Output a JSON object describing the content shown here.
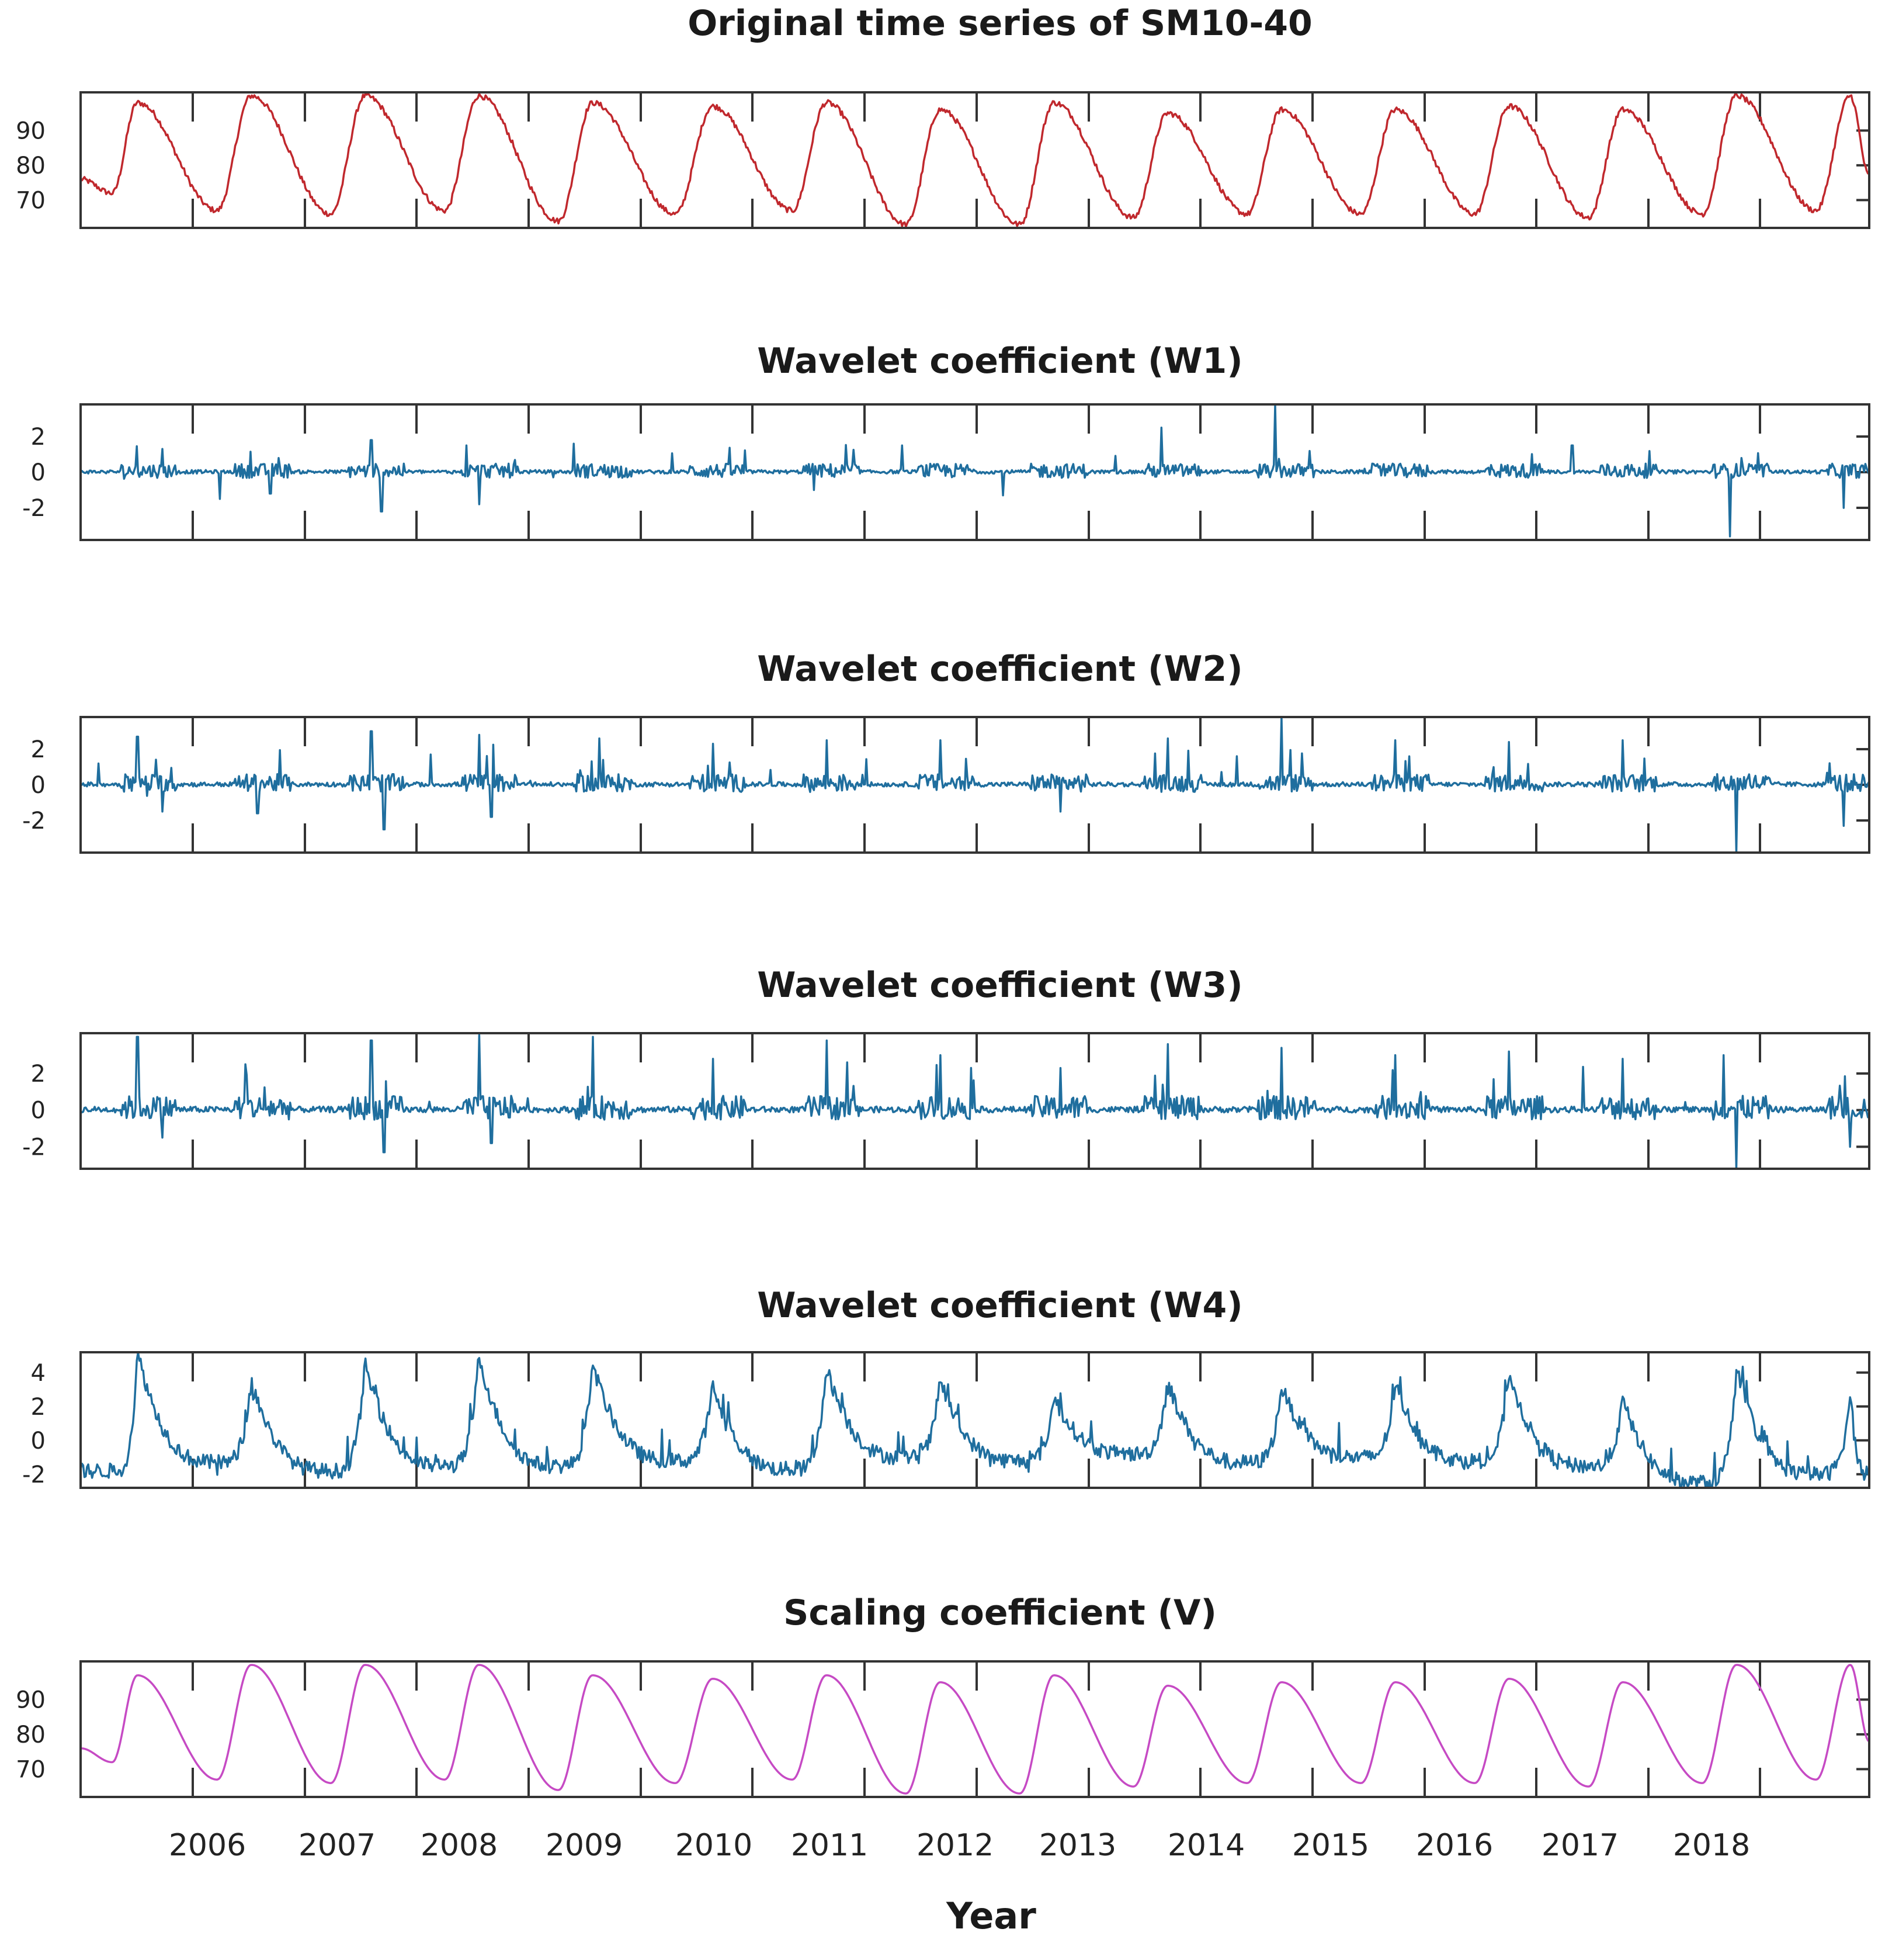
{
  "chart_data": [
    {
      "type": "line",
      "title": "Original time series of SM10-40",
      "color": "#c0282d",
      "yticks": [
        70,
        80,
        90
      ],
      "ylim": [
        62,
        101
      ],
      "xlim": [
        2005.1,
        2019.25
      ],
      "kind": "seasonal",
      "peaks": [
        2005.55,
        2006.45,
        2007.35,
        2008.25,
        2009.15,
        2010.1,
        2011.0,
        2011.9,
        2012.8,
        2013.7,
        2014.6,
        2015.5,
        2016.4,
        2017.3,
        2018.2,
        2019.1
      ],
      "peak_values": [
        98,
        100,
        100,
        100,
        98,
        97,
        98,
        96,
        98,
        95,
        96,
        96,
        97,
        96,
        100,
        100
      ],
      "trough_values": [
        72,
        67,
        66,
        67,
        64,
        66,
        67,
        63,
        63,
        65,
        66,
        66,
        66,
        65,
        66,
        67,
        77
      ]
    },
    {
      "type": "line",
      "title": "Wavelet coefficient (W1)",
      "color": "#1f6e9e",
      "yticks": [
        -2,
        0,
        2
      ],
      "ylim": [
        -3.8,
        3.8
      ],
      "xlim": [
        2005.1,
        2019.25
      ],
      "kind": "noise",
      "amp": 0.8,
      "spikes": [
        [
          2005.75,
          1.3
        ],
        [
          2006.2,
          -1.5
        ],
        [
          2006.6,
          -1.2
        ],
        [
          2007.48,
          -2.2
        ],
        [
          2007.4,
          1.8
        ],
        [
          2008.25,
          -1.8
        ],
        [
          2008.15,
          1.5
        ],
        [
          2009.0,
          1.6
        ],
        [
          2010.9,
          -1.0
        ],
        [
          2011.6,
          1.5
        ],
        [
          2012.4,
          -1.3
        ],
        [
          2013.65,
          2.5
        ],
        [
          2014.55,
          3.8
        ],
        [
          2016.9,
          1.5
        ],
        [
          2018.15,
          -3.6
        ],
        [
          2019.05,
          -2.0
        ]
      ]
    },
    {
      "type": "line",
      "title": "Wavelet coefficient (W2)",
      "color": "#1f6e9e",
      "yticks": [
        -2,
        0,
        2
      ],
      "ylim": [
        -3.8,
        3.8
      ],
      "xlim": [
        2005.1,
        2019.25
      ],
      "kind": "noise",
      "amp": 1.0,
      "spikes": [
        [
          2005.55,
          2.7
        ],
        [
          2005.75,
          -1.5
        ],
        [
          2006.5,
          -1.6
        ],
        [
          2007.4,
          3.0
        ],
        [
          2007.5,
          -2.5
        ],
        [
          2008.25,
          2.8
        ],
        [
          2008.35,
          -1.8
        ],
        [
          2009.2,
          2.6
        ],
        [
          2010.1,
          2.3
        ],
        [
          2011.0,
          2.5
        ],
        [
          2011.9,
          2.5
        ],
        [
          2012.85,
          -1.5
        ],
        [
          2013.7,
          2.6
        ],
        [
          2014.6,
          3.9
        ],
        [
          2015.5,
          2.5
        ],
        [
          2016.4,
          2.4
        ],
        [
          2017.3,
          2.5
        ],
        [
          2018.2,
          -3.8
        ],
        [
          2019.05,
          -2.3
        ]
      ]
    },
    {
      "type": "line",
      "title": "Wavelet coefficient (W3)",
      "color": "#1f6e9e",
      "yticks": [
        -2,
        0,
        2
      ],
      "ylim": [
        -3.2,
        4.2
      ],
      "xlim": [
        2005.1,
        2019.25
      ],
      "kind": "noise",
      "amp": 1.3,
      "spikes": [
        [
          2005.55,
          4.0
        ],
        [
          2005.75,
          -1.5
        ],
        [
          2006.4,
          2.5
        ],
        [
          2007.4,
          3.8
        ],
        [
          2007.5,
          -2.3
        ],
        [
          2008.25,
          4.1
        ],
        [
          2008.35,
          -1.8
        ],
        [
          2009.15,
          4.0
        ],
        [
          2010.1,
          2.8
        ],
        [
          2011.0,
          3.8
        ],
        [
          2011.9,
          3.0
        ],
        [
          2012.85,
          2.3
        ],
        [
          2013.7,
          3.6
        ],
        [
          2014.6,
          3.4
        ],
        [
          2015.5,
          3.0
        ],
        [
          2016.4,
          3.2
        ],
        [
          2017.3,
          2.8
        ],
        [
          2018.2,
          -3.2
        ],
        [
          2018.1,
          3.0
        ],
        [
          2019.1,
          -2.0
        ]
      ]
    },
    {
      "type": "line",
      "title": "Wavelet coefficient (W4)",
      "color": "#1f6e9e",
      "yticks": [
        -2,
        0,
        2,
        4
      ],
      "ylim": [
        -2.8,
        5.2
      ],
      "xlim": [
        2005.1,
        2019.25
      ],
      "kind": "peaky",
      "peaks": [
        2005.55,
        2006.45,
        2007.35,
        2008.25,
        2009.15,
        2010.1,
        2011.0,
        2011.9,
        2012.8,
        2013.7,
        2014.6,
        2015.5,
        2016.4,
        2017.3,
        2018.2,
        2019.1
      ],
      "peak_values": [
        5.2,
        3.5,
        4.5,
        5.0,
        4.5,
        3.2,
        4.3,
        3.6,
        2.5,
        3.5,
        3.2,
        3.3,
        4.0,
        2.4,
        4.2,
        2.6
      ],
      "trough_values": [
        -1.8,
        -1.3,
        -1.8,
        -1.5,
        -1.5,
        -1.2,
        -1.7,
        -1.0,
        -1.2,
        -0.8,
        -1.3,
        -1.0,
        -1.2,
        -1.5,
        -2.5,
        -2.0
      ]
    },
    {
      "type": "line",
      "title": "Scaling coefficient (V)",
      "color": "#c64ac4",
      "yticks": [
        70,
        80,
        90
      ],
      "ylim": [
        62,
        101
      ],
      "xlim": [
        2005.1,
        2019.25
      ],
      "kind": "seasonal_smooth",
      "peaks": [
        2005.55,
        2006.45,
        2007.35,
        2008.25,
        2009.15,
        2010.1,
        2011.0,
        2011.9,
        2012.8,
        2013.7,
        2014.6,
        2015.5,
        2016.4,
        2017.3,
        2018.2,
        2019.1
      ],
      "peak_values": [
        97,
        100,
        100,
        100,
        97,
        96,
        97,
        95,
        97,
        94,
        95,
        95,
        96,
        95,
        100,
        100
      ],
      "trough_values": [
        72,
        67,
        66,
        67,
        64,
        66,
        67,
        63,
        63,
        65,
        66,
        66,
        66,
        65,
        66,
        67,
        78
      ]
    }
  ],
  "x_axis": {
    "label": "Year",
    "tick_labels": [
      "2006",
      "2007",
      "2008",
      "2009",
      "2010",
      "2011",
      "2012",
      "2013",
      "2014",
      "2015",
      "2016",
      "2017",
      "2018"
    ]
  }
}
